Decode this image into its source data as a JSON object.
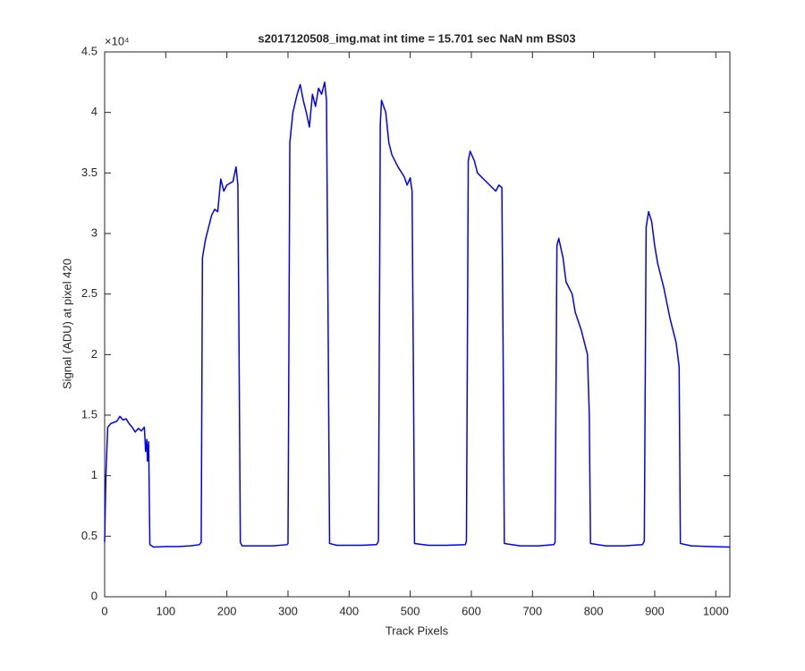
{
  "chart_data": {
    "type": "line",
    "title": "s2017120508_img.mat int time = 15.701 sec  NaN nm BS03",
    "xlabel": "Track Pixels",
    "ylabel": "Signal (ADU) at pixel 420",
    "y_multiplier_label": "×10⁴",
    "xlim": [
      0,
      1023
    ],
    "ylim": [
      0,
      45000
    ],
    "xticks": [
      0,
      100,
      200,
      300,
      400,
      500,
      600,
      700,
      800,
      900,
      1000
    ],
    "yticks": [
      0,
      {
        "value": 5000,
        "label": "0.5"
      },
      {
        "value": 10000,
        "label": "1"
      },
      {
        "value": 15000,
        "label": "1.5"
      },
      {
        "value": 20000,
        "label": "2"
      },
      {
        "value": 25000,
        "label": "2.5"
      },
      {
        "value": 30000,
        "label": "3"
      },
      {
        "value": 35000,
        "label": "3.5"
      },
      {
        "value": 40000,
        "label": "4"
      },
      {
        "value": 45000,
        "label": "4.5"
      }
    ],
    "grid": false,
    "color": "#0000ff",
    "x": [
      0,
      2,
      5,
      10,
      15,
      20,
      25,
      30,
      35,
      40,
      45,
      50,
      55,
      60,
      65,
      67,
      69,
      70,
      72,
      74,
      80,
      100,
      120,
      140,
      155,
      158,
      160,
      165,
      170,
      175,
      180,
      185,
      190,
      195,
      200,
      210,
      215,
      218,
      220,
      222,
      225,
      250,
      275,
      298,
      300,
      303,
      308,
      315,
      320,
      325,
      330,
      335,
      340,
      345,
      350,
      355,
      360,
      363,
      366,
      368,
      380,
      400,
      420,
      445,
      448,
      451,
      453,
      460,
      465,
      470,
      480,
      490,
      495,
      500,
      503,
      505,
      507,
      530,
      560,
      590,
      592,
      595,
      598,
      605,
      610,
      620,
      630,
      640,
      645,
      650,
      652,
      654,
      680,
      710,
      735,
      737,
      740,
      743,
      750,
      755,
      765,
      770,
      780,
      785,
      790,
      793,
      795,
      820,
      850,
      880,
      883,
      886,
      890,
      895,
      900,
      905,
      915,
      925,
      935,
      940,
      942,
      960,
      990,
      1023
    ],
    "values": [
      4500,
      10000,
      14000,
      14300,
      14400,
      14500,
      14900,
      14600,
      14700,
      14300,
      14000,
      13600,
      13900,
      13700,
      14000,
      12000,
      13000,
      11200,
      12800,
      4300,
      4100,
      4150,
      4150,
      4200,
      4300,
      4500,
      28000,
      29500,
      30500,
      31500,
      32000,
      31800,
      34500,
      33500,
      34000,
      34300,
      35500,
      34000,
      20000,
      4500,
      4200,
      4200,
      4200,
      4300,
      4400,
      37500,
      40000,
      41500,
      42300,
      41000,
      40000,
      38800,
      41500,
      40500,
      42000,
      41500,
      42500,
      41000,
      20000,
      4400,
      4250,
      4250,
      4250,
      4300,
      4600,
      39000,
      41000,
      40000,
      37500,
      36500,
      35500,
      34700,
      34000,
      34600,
      33500,
      20000,
      4400,
      4250,
      4250,
      4300,
      4600,
      36000,
      36800,
      36000,
      35000,
      34500,
      34000,
      33500,
      34000,
      33800,
      20000,
      4400,
      4200,
      4200,
      4300,
      4500,
      29000,
      29600,
      28000,
      26000,
      25000,
      23500,
      22000,
      21000,
      20000,
      15000,
      4400,
      4200,
      4200,
      4300,
      4600,
      30500,
      31800,
      31000,
      29000,
      27500,
      25500,
      23000,
      21000,
      19000,
      4400,
      4200,
      4150,
      4100
    ]
  }
}
